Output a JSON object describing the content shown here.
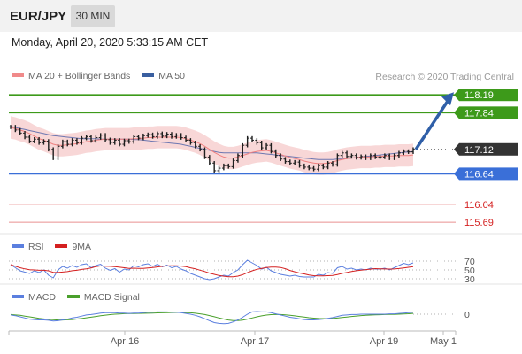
{
  "header": {
    "symbol": "EUR/JPY",
    "timeframe": "30 MIN"
  },
  "datetime": "Monday, April 20, 2020 5:33:15 AM CET",
  "credit": "Research © 2020 Trading Central",
  "colors": {
    "resistance": "#3d9a1a",
    "support": "#3a6fd8",
    "target": "#e06060",
    "current": "#333333",
    "band": "#f6c9c9",
    "ma20": "#f08080",
    "ma50": "#4a5fa8",
    "arrow": "#2f5fa8",
    "rsi": "#5b7fdf",
    "rsi_ma": "#d42020",
    "macd": "#5b7fdf",
    "macd_signal": "#4aa02c"
  },
  "legends": {
    "main": [
      {
        "label": "MA 20 + Bollinger Bands",
        "color": "#f08a8a"
      },
      {
        "label": "MA 50",
        "color": "#3a5fa0"
      }
    ],
    "rsi": [
      {
        "label": "RSI",
        "color": "#5b7fdf"
      },
      {
        "label": "9MA",
        "color": "#d42020"
      }
    ],
    "macd": [
      {
        "label": "MACD",
        "color": "#5b7fdf"
      },
      {
        "label": "MACD Signal",
        "color": "#4aa02c"
      }
    ]
  },
  "chart_data": {
    "type": "line",
    "price_range": [
      115.5,
      118.35
    ],
    "levels": [
      {
        "value": 118.19,
        "label": "118.19",
        "kind": "resistance"
      },
      {
        "value": 117.84,
        "label": "117.84",
        "kind": "resistance"
      },
      {
        "value": 117.12,
        "label": "117.12",
        "kind": "current"
      },
      {
        "value": 116.64,
        "label": "116.64",
        "kind": "support"
      },
      {
        "value": 116.04,
        "label": "116.04",
        "kind": "target"
      },
      {
        "value": 115.69,
        "label": "115.69",
        "kind": "target"
      }
    ],
    "x_ticks": [
      "Apr 16",
      "Apr 17",
      "Apr 19",
      "May 1"
    ],
    "price": [
      117.56,
      117.5,
      117.44,
      117.36,
      117.28,
      117.32,
      117.25,
      117.28,
      117.12,
      116.95,
      117.18,
      117.27,
      117.22,
      117.3,
      117.25,
      117.34,
      117.37,
      117.29,
      117.35,
      117.4,
      117.31,
      117.25,
      117.3,
      117.22,
      117.29,
      117.27,
      117.37,
      117.34,
      117.39,
      117.41,
      117.37,
      117.43,
      117.38,
      117.42,
      117.37,
      117.4,
      117.35,
      117.3,
      117.25,
      117.18,
      117.12,
      116.97,
      116.85,
      116.7,
      116.75,
      116.8,
      116.78,
      116.9,
      117.0,
      117.2,
      117.34,
      117.3,
      117.25,
      117.15,
      117.2,
      117.08,
      117.0,
      116.93,
      116.88,
      116.85,
      116.87,
      116.8,
      116.77,
      116.75,
      116.73,
      116.8,
      116.77,
      116.85,
      116.82,
      117.0,
      117.05,
      116.98,
      117.0,
      116.96,
      116.98,
      116.95,
      117.0,
      116.97,
      116.97,
      117.0,
      116.95,
      117.0,
      117.05,
      117.08,
      117.07,
      117.12
    ],
    "ma20": [
      117.55,
      117.53,
      117.5,
      117.47,
      117.43,
      117.38,
      117.33,
      117.3,
      117.26,
      117.22,
      117.2,
      117.2,
      117.21,
      117.22,
      117.23,
      117.25,
      117.27,
      117.28,
      117.3,
      117.31,
      117.32,
      117.32,
      117.32,
      117.32,
      117.32,
      117.32,
      117.33,
      117.33,
      117.34,
      117.35,
      117.35,
      117.36,
      117.36,
      117.36,
      117.36,
      117.36,
      117.35,
      117.33,
      117.3,
      117.27,
      117.23,
      117.18,
      117.12,
      117.06,
      117.01,
      116.97,
      116.95,
      116.95,
      116.97,
      117.0,
      117.03,
      117.06,
      117.08,
      117.09,
      117.1,
      117.08,
      117.05,
      117.02,
      116.99,
      116.96,
      116.94,
      116.92,
      116.89,
      116.87,
      116.85,
      116.84,
      116.84,
      116.85,
      116.87,
      116.9,
      116.92,
      116.94,
      116.95,
      116.96,
      116.97,
      116.97,
      116.97,
      116.98,
      116.98,
      116.99,
      116.99,
      116.99,
      117.0,
      117.0,
      117.0,
      117.01
    ],
    "ma50": [
      117.57,
      117.55,
      117.53,
      117.51,
      117.49,
      117.47,
      117.45,
      117.43,
      117.41,
      117.39,
      117.38,
      117.37,
      117.36,
      117.35,
      117.34,
      117.33,
      117.33,
      117.33,
      117.33,
      117.32,
      117.32,
      117.32,
      117.32,
      117.32,
      117.32,
      117.32,
      117.31,
      117.31,
      117.3,
      117.29,
      117.28,
      117.27,
      117.26,
      117.25,
      117.24,
      117.23,
      117.22,
      117.2,
      117.18,
      117.16,
      117.14,
      117.12,
      117.1,
      117.08,
      117.06,
      117.05,
      117.05,
      117.05,
      117.05,
      117.05,
      117.05,
      117.05,
      117.05,
      117.04,
      117.03,
      117.02,
      117.01,
      117.0,
      116.99,
      116.98,
      116.97,
      116.96,
      116.95,
      116.94,
      116.93,
      116.92,
      116.92,
      116.92,
      116.92,
      116.93,
      116.93,
      116.94,
      116.95,
      116.96,
      116.97,
      116.98,
      116.99,
      117.0,
      117.01,
      117.02,
      117.03,
      117.04,
      117.05,
      117.06,
      117.07,
      117.08
    ],
    "rsi": {
      "ticks": [
        70,
        50,
        30
      ],
      "range": [
        20,
        80
      ],
      "values": [
        62,
        55,
        48,
        45,
        42,
        48,
        44,
        50,
        38,
        32,
        50,
        58,
        54,
        60,
        56,
        62,
        64,
        55,
        60,
        63,
        54,
        49,
        53,
        45,
        52,
        50,
        60,
        57,
        62,
        64,
        58,
        63,
        57,
        61,
        55,
        58,
        52,
        48,
        42,
        38,
        34,
        30,
        28,
        30,
        34,
        38,
        36,
        44,
        50,
        62,
        72,
        66,
        60,
        52,
        56,
        48,
        44,
        40,
        38,
        36,
        38,
        35,
        34,
        34,
        34,
        40,
        38,
        44,
        42,
        55,
        58,
        52,
        54,
        50,
        52,
        50,
        54,
        52,
        52,
        54,
        50,
        55,
        60,
        65,
        62,
        66
      ]
    },
    "macd": {
      "ticks": [
        0
      ],
      "range": [
        -0.15,
        0.15
      ],
      "macd": [
        -0.01,
        -0.02,
        -0.035,
        -0.05,
        -0.065,
        -0.07,
        -0.075,
        -0.075,
        -0.08,
        -0.09,
        -0.085,
        -0.075,
        -0.065,
        -0.05,
        -0.04,
        -0.025,
        -0.01,
        -0.005,
        0.005,
        0.015,
        0.02,
        0.02,
        0.02,
        0.015,
        0.015,
        0.01,
        0.015,
        0.015,
        0.02,
        0.025,
        0.025,
        0.03,
        0.03,
        0.03,
        0.025,
        0.025,
        0.02,
        0.01,
        0.0,
        -0.015,
        -0.035,
        -0.06,
        -0.085,
        -0.11,
        -0.12,
        -0.125,
        -0.12,
        -0.1,
        -0.075,
        -0.04,
        0.0,
        0.03,
        0.035,
        0.03,
        0.03,
        0.02,
        0.005,
        -0.01,
        -0.025,
        -0.04,
        -0.05,
        -0.06,
        -0.07,
        -0.075,
        -0.075,
        -0.07,
        -0.065,
        -0.055,
        -0.045,
        -0.03,
        -0.015,
        -0.01,
        -0.005,
        -0.005,
        0.0,
        0.0,
        0.0,
        0.0,
        0.0,
        0.0,
        0.005,
        0.005,
        0.01,
        0.015,
        0.02,
        0.025
      ],
      "signal": [
        -0.005,
        -0.01,
        -0.015,
        -0.025,
        -0.035,
        -0.045,
        -0.055,
        -0.062,
        -0.068,
        -0.073,
        -0.076,
        -0.076,
        -0.074,
        -0.07,
        -0.064,
        -0.056,
        -0.047,
        -0.039,
        -0.03,
        -0.021,
        -0.013,
        -0.006,
        0.0,
        0.004,
        0.007,
        0.008,
        0.009,
        0.01,
        0.011,
        0.013,
        0.015,
        0.017,
        0.019,
        0.021,
        0.022,
        0.023,
        0.023,
        0.021,
        0.018,
        0.013,
        0.005,
        -0.005,
        -0.018,
        -0.034,
        -0.05,
        -0.064,
        -0.076,
        -0.083,
        -0.083,
        -0.077,
        -0.065,
        -0.05,
        -0.035,
        -0.022,
        -0.012,
        -0.006,
        -0.004,
        -0.005,
        -0.009,
        -0.015,
        -0.022,
        -0.03,
        -0.038,
        -0.046,
        -0.052,
        -0.056,
        -0.058,
        -0.058,
        -0.056,
        -0.051,
        -0.044,
        -0.037,
        -0.03,
        -0.024,
        -0.019,
        -0.015,
        -0.012,
        -0.009,
        -0.007,
        -0.005,
        -0.003,
        -0.002,
        0.0,
        0.003,
        0.006,
        0.01
      ]
    }
  }
}
